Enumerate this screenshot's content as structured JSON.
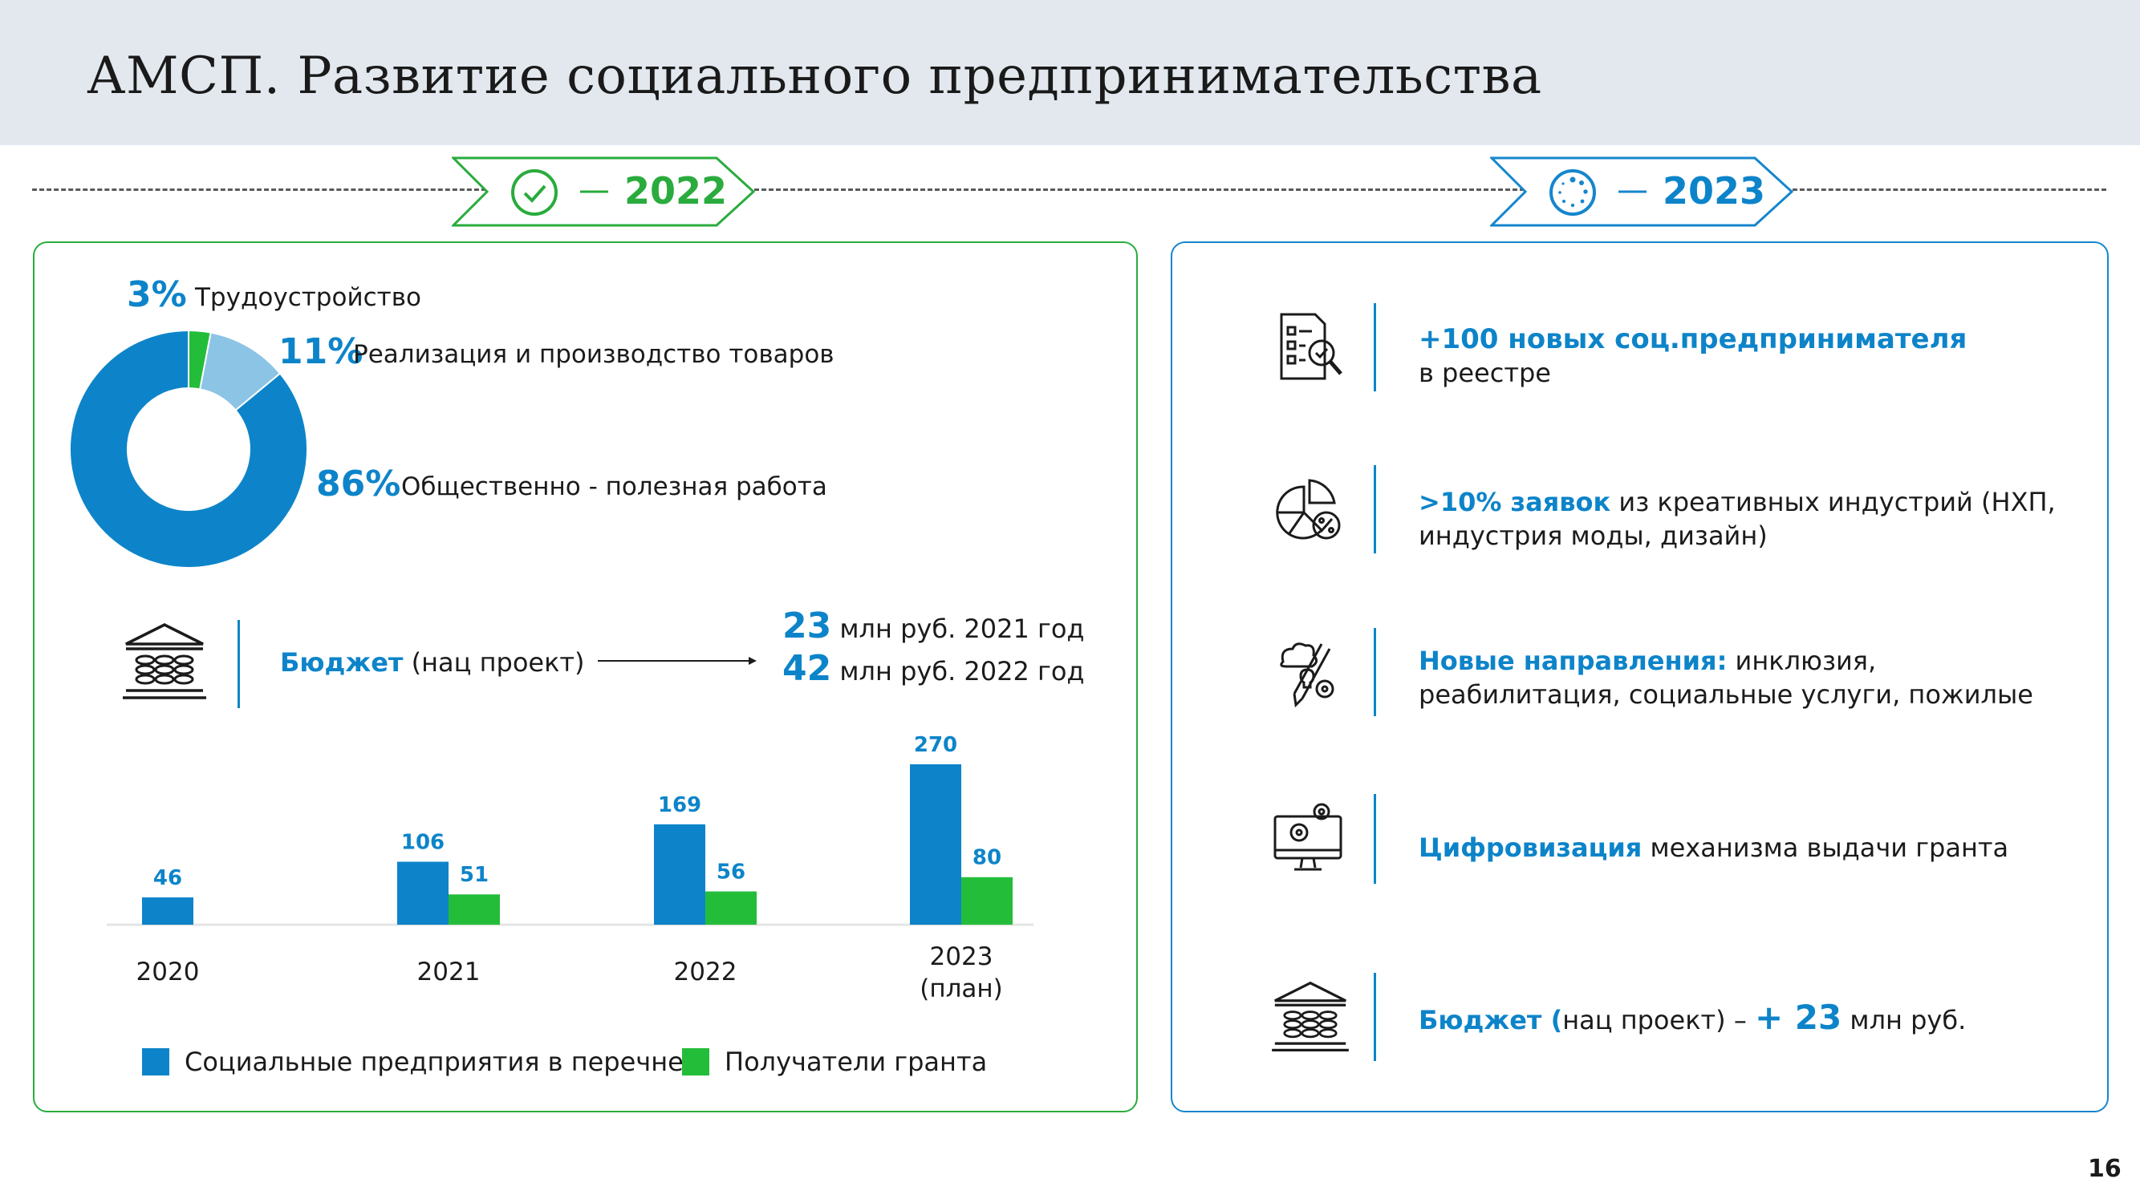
{
  "title": "АМСП. Развитие социального предпринимательства",
  "tags": {
    "left_year": "2022",
    "right_year": "2023"
  },
  "colors": {
    "blue": "#0d84c9",
    "green": "#23bd3a",
    "light_blue": "#8cc4e6",
    "header_bg": "#e2e8ee"
  },
  "left": {
    "donut": [
      {
        "pct": "3%",
        "label": "Трудоустройство",
        "value": 3,
        "color": "#23bd3a"
      },
      {
        "pct": "11%",
        "label": "Реализация и производство товаров",
        "value": 11,
        "color": "#8cc4e6"
      },
      {
        "pct": "86%",
        "label": "Общественно - полезная работа",
        "value": 86,
        "color": "#0d84c9"
      }
    ],
    "budget": {
      "label_bold": "Бюджет",
      "label_rest": " (нац проект)",
      "line1_num": "23",
      "line1_text": " млн руб. 2021 год",
      "line2_num": "42",
      "line2_text": " млн руб. 2022 год"
    },
    "legend": {
      "series1": "Социальные предприятия в перечне",
      "series2": "Получатели гранта"
    }
  },
  "chart_data": {
    "type": "bar",
    "categories": [
      "2020",
      "2021",
      "2022",
      "2023\n(план)"
    ],
    "category_lines": [
      [
        "2020"
      ],
      [
        "2021"
      ],
      [
        "2022"
      ],
      [
        "2023",
        "(план)"
      ]
    ],
    "series": [
      {
        "name": "Социальные предприятия в перечне",
        "values": [
          46,
          106,
          169,
          270
        ],
        "color": "#0d84c9"
      },
      {
        "name": "Получатели гранта",
        "values": [
          null,
          51,
          56,
          80
        ],
        "color": "#23bd3a"
      }
    ],
    "data_labels": true,
    "ylim": [
      0,
      270
    ],
    "grid": false,
    "legend": "bottom"
  },
  "right": {
    "items": [
      {
        "icon": "document-search-icon",
        "parts": [
          [
            "+100 новых соц.предпринимателя",
            true
          ],
          [
            "\nв реестре",
            false
          ]
        ]
      },
      {
        "icon": "pie-percent-icon",
        "parts": [
          [
            ">10% заявок",
            true
          ],
          [
            " из креативных индустрий (НХП, индустрия моды, дизайн)",
            false
          ]
        ]
      },
      {
        "icon": "creative-tools-icon",
        "parts": [
          [
            "Новые направления:",
            true
          ],
          [
            " инклюзия, реабилитация, социальные услуги, пожилые",
            false
          ]
        ]
      },
      {
        "icon": "monitor-gears-icon",
        "parts": [
          [
            "Цифровизация",
            true
          ],
          [
            " механизма выдачи гранта",
            false
          ]
        ]
      }
    ],
    "budget": {
      "bold": "Бюджет (",
      "rest": "нац проект)  –  ",
      "num": "+ 23",
      "unit": " млн руб."
    }
  },
  "page_number": "16"
}
